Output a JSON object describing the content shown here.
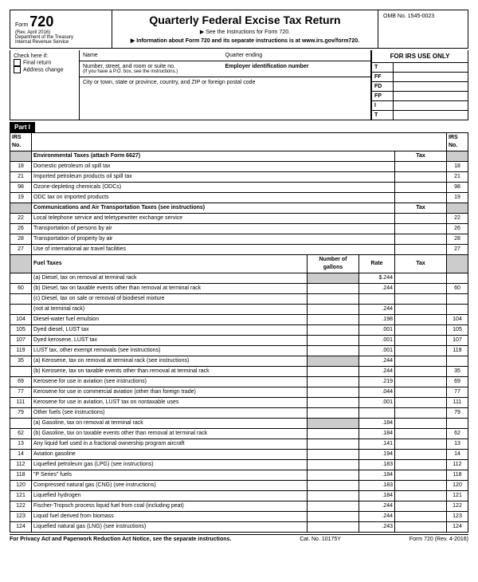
{
  "header": {
    "form": "Form",
    "number": "720",
    "rev": "(Rev. April 2016)",
    "dept": "Department of the Treasury",
    "irs": "Internal Revenue Service",
    "title": "Quarterly Federal Excise Tax Return",
    "sub1": "▶ See the Instructions for Form 720.",
    "sub2": "▶ Information about Form 720 and its separate instructions is at www.irs.gov/form720.",
    "omb": "OMB No. 1545-0023"
  },
  "info": {
    "check": "Check here if:",
    "final": "Final return",
    "addr": "Address change",
    "name": "Name",
    "quarter": "Quarter ending",
    "street": "Number, street, and room or suite no.",
    "pobox": "(If you have a P.O. box, see the instructions.)",
    "ein": "Employer identification number",
    "city": "City or town, state or province, country, and ZIP or foreign postal code",
    "irsonly": "FOR IRS USE ONLY",
    "irs_labels": [
      "T",
      "FF",
      "FD",
      "FP",
      "I",
      "T"
    ]
  },
  "part1": "Part I",
  "sections": [
    {
      "type": "header",
      "desc": "Environmental Taxes (attach Form 6627)",
      "cols": [
        "Tax",
        "IRS No."
      ]
    },
    {
      "num": "18",
      "desc": "Domestic petroleum oil spill tax",
      "num_r": "18"
    },
    {
      "num": "21",
      "desc": "Imported petroleum products oil spill tax",
      "num_r": "21"
    },
    {
      "num": "98",
      "desc": "Ozone-depleting chemicals (ODCs)",
      "num_r": "98"
    },
    {
      "num": "19",
      "desc": "ODC tax on imported products",
      "num_r": "19"
    },
    {
      "type": "header",
      "desc": "Communications and Air Transportation Taxes (see instructions)",
      "cols": [
        "Tax",
        ""
      ]
    },
    {
      "num": "22",
      "desc": "Local telephone service and teletypewriter exchange service",
      "num_r": "22"
    },
    {
      "num": "26",
      "desc": "Transportation of persons by air",
      "num_r": "26"
    },
    {
      "num": "28",
      "desc": "Transportation of property by air",
      "num_r": "28"
    },
    {
      "num": "27",
      "desc": "Use of international air travel facilities",
      "num_r": "27"
    },
    {
      "type": "fuel_header",
      "desc": "Fuel Taxes",
      "gal": "Number of gallons",
      "rate": "Rate",
      "tax": "Tax"
    },
    {
      "type": "fuel",
      "num": "",
      "desc": "(a) Diesel, tax on removal at terminal rack",
      "rate": "$.244",
      "num_r": "",
      "shade_gal": true
    },
    {
      "type": "fuel",
      "num": "60",
      "desc": "(b) Diesel, tax on taxable events other than removal at terminal rack",
      "rate": ".244",
      "num_r": "60"
    },
    {
      "type": "fuel",
      "num": "",
      "desc": "(c) Diesel, tax on sale or removal of biodiesel mixture",
      "rate": "",
      "num_r": ""
    },
    {
      "type": "fuel",
      "num": "",
      "desc": "     (not at terminal rack)",
      "rate": ".244",
      "num_r": ""
    },
    {
      "type": "fuel",
      "num": "104",
      "desc": "Diesel-water fuel emulsion",
      "rate": ".198",
      "num_r": "104"
    },
    {
      "type": "fuel",
      "num": "105",
      "desc": "Dyed diesel, LUST tax",
      "rate": ".001",
      "num_r": "105"
    },
    {
      "type": "fuel",
      "num": "107",
      "desc": "Dyed kerosene, LUST tax",
      "rate": ".001",
      "num_r": "107"
    },
    {
      "type": "fuel",
      "num": "119",
      "desc": "LUST tax, other exempt removals (see instructions)",
      "rate": ".001",
      "num_r": "119"
    },
    {
      "type": "fuel",
      "num": "35",
      "desc": "(a) Kerosene, tax on removal at terminal rack (see instructions)",
      "rate": ".244",
      "num_r": "",
      "shade_gal": true
    },
    {
      "type": "fuel",
      "num": "",
      "desc": "(b) Kerosene, tax on taxable events other than removal at terminal rack",
      "rate": ".244",
      "num_r": "35"
    },
    {
      "type": "fuel",
      "num": "69",
      "desc": "Kerosene for use in aviation (see instructions)",
      "rate": ".219",
      "num_r": "69"
    },
    {
      "type": "fuel",
      "num": "77",
      "desc": "Kerosene for use in commercial aviation (other than foreign trade)",
      "rate": ".044",
      "num_r": "77"
    },
    {
      "type": "fuel",
      "num": "111",
      "desc": "Kerosene for use in aviation, LUST tax on nontaxable uses",
      "rate": ".001",
      "num_r": "111"
    },
    {
      "type": "fuel",
      "num": "79",
      "desc": "Other fuels (see instructions)",
      "rate": "",
      "num_r": "79"
    },
    {
      "type": "fuel",
      "num": "",
      "desc": "(a) Gasoline, tax on removal at terminal rack",
      "rate": ".184",
      "num_r": "",
      "shade_gal": true
    },
    {
      "type": "fuel",
      "num": "62",
      "desc": "(b) Gasoline, tax on taxable events other than removal at terminal rack",
      "rate": ".184",
      "num_r": "62"
    },
    {
      "type": "fuel",
      "num": "13",
      "desc": "Any liquid fuel used in a fractional ownership program aircraft",
      "rate": ".141",
      "num_r": "13"
    },
    {
      "type": "fuel",
      "num": "14",
      "desc": "Aviation gasoline",
      "rate": ".194",
      "num_r": "14"
    },
    {
      "type": "fuel",
      "num": "112",
      "desc": "Liquefied petroleum gas (LPG) (see instructions)",
      "rate": ".183",
      "num_r": "112"
    },
    {
      "type": "fuel",
      "num": "118",
      "desc": "\"P Series\" fuels",
      "rate": ".184",
      "num_r": "118"
    },
    {
      "type": "fuel",
      "num": "120",
      "desc": "Compressed natural gas (CNG) (see instructions)",
      "rate": ".183",
      "num_r": "120"
    },
    {
      "type": "fuel",
      "num": "121",
      "desc": "Liquefied hydrogen",
      "rate": ".184",
      "num_r": "121"
    },
    {
      "type": "fuel",
      "num": "122",
      "desc": "Fischer-Tropsch process liquid fuel from coal (including peat)",
      "rate": ".244",
      "num_r": "122"
    },
    {
      "type": "fuel",
      "num": "123",
      "desc": "Liquid fuel derived from biomass",
      "rate": ".244",
      "num_r": "123"
    },
    {
      "type": "fuel",
      "num": "124",
      "desc": "Liquefied natural gas (LNG) (see instructions)",
      "rate": ".243",
      "num_r": "124"
    }
  ],
  "colhdr": {
    "irsno": "IRS No."
  },
  "footer": {
    "left": "For Privacy Act and Paperwork Reduction Act Notice, see the separate instructions.",
    "mid": "Cat. No. 10175Y",
    "right": "Form 720 (Rev. 4-2016)"
  }
}
